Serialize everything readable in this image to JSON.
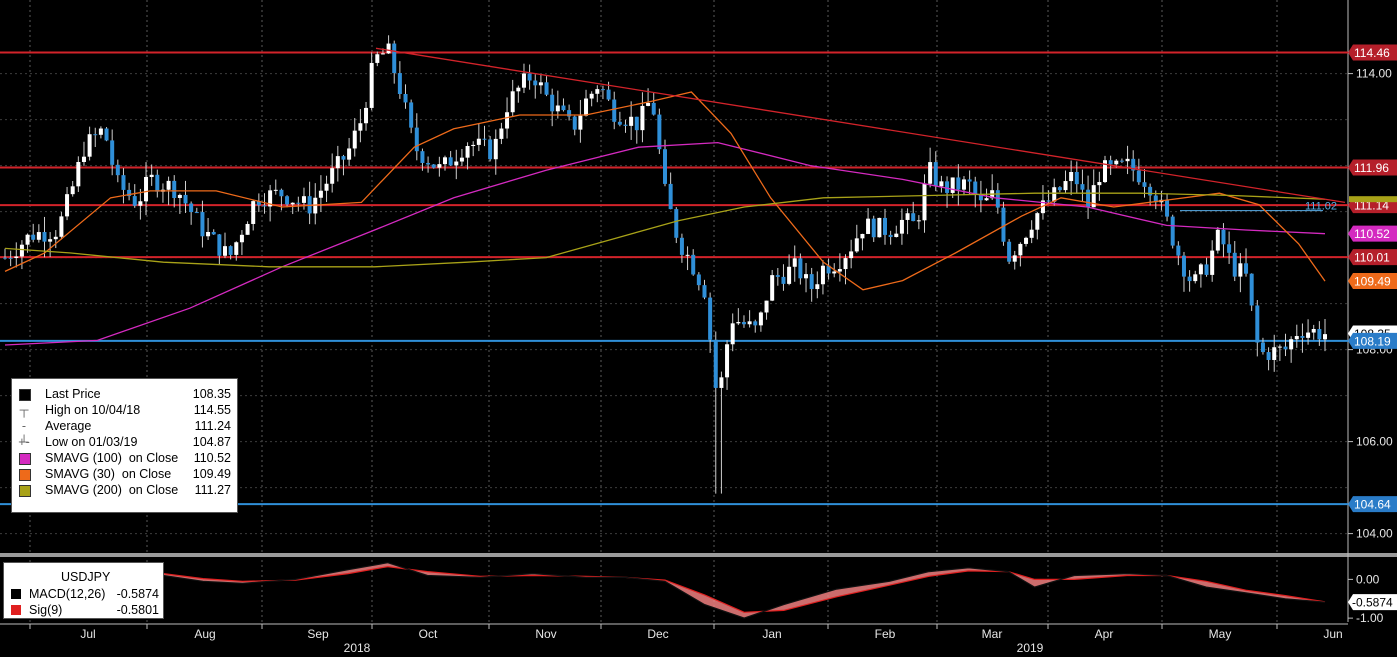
{
  "chart_data": [
    {
      "type": "candlestick",
      "instrument": "USDJPY",
      "ylim": [
        103.6,
        115.6
      ],
      "y_ticks": [
        104.0,
        106.0,
        108.0,
        114.0
      ],
      "x_months": [
        "Jul",
        "Aug",
        "Sep",
        "Oct",
        "Nov",
        "Dec",
        "Jan",
        "Feb",
        "Mar",
        "Apr",
        "May",
        "Jun"
      ],
      "x_years": [
        "2018",
        "2019"
      ],
      "horizontal_lines": [
        {
          "value": 114.46,
          "label": "114.46",
          "color": "#d2232a"
        },
        {
          "value": 111.96,
          "label": "111.96",
          "color": "#d2232a"
        },
        {
          "value": 111.14,
          "label": "111.14",
          "color": "#d2232a"
        },
        {
          "value": 110.01,
          "label": "110.01",
          "color": "#d2232a"
        },
        {
          "value": 108.19,
          "label": "108.19",
          "color": "#2f8fd8"
        },
        {
          "value": 104.64,
          "label": "104.64",
          "color": "#2f8fd8"
        }
      ],
      "axis_tags": [
        {
          "value": 110.52,
          "label": "110.52",
          "color": "#d42ac0"
        },
        {
          "value": 109.49,
          "label": "109.49",
          "color": "#ee6a1a"
        },
        {
          "value": 108.35,
          "label": "108.35",
          "color": "#ffffff"
        }
      ],
      "annotations": [
        {
          "label": "111.02",
          "value": 111.02,
          "color": "#5aaee8"
        }
      ],
      "trendline": {
        "from": [
          "2018-10-04",
          114.55
        ],
        "to": [
          "2019-06-03",
          111.2
        ],
        "color": "#d2232a"
      },
      "series": [
        {
          "name": "SMAVG (100) on Close",
          "color": "#d42ac0",
          "points": [
            [
              0,
              108.1
            ],
            [
              0.07,
              108.2
            ],
            [
              0.14,
              108.9
            ],
            [
              0.21,
              109.8
            ],
            [
              0.28,
              110.6
            ],
            [
              0.34,
              111.3
            ],
            [
              0.41,
              111.9
            ],
            [
              0.48,
              112.4
            ],
            [
              0.54,
              112.5
            ],
            [
              0.61,
              112.0
            ],
            [
              0.68,
              111.7
            ],
            [
              0.75,
              111.3
            ],
            [
              0.82,
              111.1
            ],
            [
              0.88,
              110.7
            ],
            [
              0.94,
              110.6
            ],
            [
              1.0,
              110.52
            ]
          ]
        },
        {
          "name": "SMAVG (30) on Close",
          "color": "#ee6a1a",
          "points": [
            [
              0,
              109.7
            ],
            [
              0.03,
              110.1
            ],
            [
              0.08,
              111.3
            ],
            [
              0.11,
              111.45
            ],
            [
              0.16,
              111.45
            ],
            [
              0.21,
              111.1
            ],
            [
              0.27,
              111.2
            ],
            [
              0.31,
              112.4
            ],
            [
              0.34,
              112.8
            ],
            [
              0.39,
              113.1
            ],
            [
              0.44,
              113.1
            ],
            [
              0.49,
              113.4
            ],
            [
              0.52,
              113.6
            ],
            [
              0.55,
              112.7
            ],
            [
              0.58,
              111.3
            ],
            [
              0.62,
              109.9
            ],
            [
              0.65,
              109.3
            ],
            [
              0.68,
              109.5
            ],
            [
              0.72,
              110.1
            ],
            [
              0.77,
              110.9
            ],
            [
              0.8,
              111.3
            ],
            [
              0.84,
              111.1
            ],
            [
              0.88,
              111.25
            ],
            [
              0.92,
              111.4
            ],
            [
              0.95,
              111.15
            ],
            [
              0.98,
              110.3
            ],
            [
              1.0,
              109.49
            ]
          ]
        },
        {
          "name": "SMAVG (200) on Close",
          "color": "#a8a218",
          "points": [
            [
              0,
              110.2
            ],
            [
              0.05,
              110.1
            ],
            [
              0.12,
              109.9
            ],
            [
              0.2,
              109.8
            ],
            [
              0.28,
              109.8
            ],
            [
              0.35,
              109.9
            ],
            [
              0.41,
              110.0
            ],
            [
              0.46,
              110.4
            ],
            [
              0.51,
              110.8
            ],
            [
              0.56,
              111.1
            ],
            [
              0.62,
              111.3
            ],
            [
              0.7,
              111.35
            ],
            [
              0.78,
              111.4
            ],
            [
              0.86,
              111.4
            ],
            [
              0.93,
              111.35
            ],
            [
              1.0,
              111.27
            ]
          ]
        },
        {
          "name": "Last Price",
          "color": "#2f8fd8",
          "points": [
            [
              0,
              110.0
            ],
            [
              0.02,
              110.5
            ],
            [
              0.04,
              110.6
            ],
            [
              0.05,
              111.4
            ],
            [
              0.06,
              112.4
            ],
            [
              0.075,
              112.8
            ],
            [
              0.085,
              111.6
            ],
            [
              0.1,
              111.2
            ],
            [
              0.11,
              111.7
            ],
            [
              0.13,
              111.5
            ],
            [
              0.15,
              110.6
            ],
            [
              0.17,
              110.0
            ],
            [
              0.19,
              111.3
            ],
            [
              0.21,
              111.4
            ],
            [
              0.23,
              111.1
            ],
            [
              0.25,
              111.9
            ],
            [
              0.26,
              112.3
            ],
            [
              0.27,
              113.0
            ],
            [
              0.28,
              114.3
            ],
            [
              0.29,
              114.5
            ],
            [
              0.3,
              113.6
            ],
            [
              0.31,
              112.4
            ],
            [
              0.33,
              111.9
            ],
            [
              0.35,
              112.5
            ],
            [
              0.37,
              112.3
            ],
            [
              0.38,
              113.3
            ],
            [
              0.39,
              113.7
            ],
            [
              0.4,
              114.0
            ],
            [
              0.41,
              113.5
            ],
            [
              0.43,
              112.8
            ],
            [
              0.44,
              113.4
            ],
            [
              0.45,
              113.8
            ],
            [
              0.46,
              113.2
            ],
            [
              0.48,
              112.9
            ],
            [
              0.49,
              113.5
            ],
            [
              0.5,
              111.4
            ],
            [
              0.51,
              110.4
            ],
            [
              0.52,
              109.9
            ],
            [
              0.53,
              109.3
            ],
            [
              0.54,
              106.8
            ],
            [
              0.55,
              108.7
            ],
            [
              0.57,
              108.4
            ],
            [
              0.58,
              109.5
            ],
            [
              0.6,
              109.8
            ],
            [
              0.61,
              109.3
            ],
            [
              0.62,
              109.8
            ],
            [
              0.63,
              109.9
            ],
            [
              0.64,
              110.2
            ],
            [
              0.65,
              110.7
            ],
            [
              0.67,
              110.6
            ],
            [
              0.68,
              110.8
            ],
            [
              0.69,
              110.7
            ],
            [
              0.7,
              111.9
            ],
            [
              0.71,
              111.5
            ],
            [
              0.73,
              111.6
            ],
            [
              0.74,
              111.1
            ],
            [
              0.75,
              111.4
            ],
            [
              0.76,
              110.0
            ],
            [
              0.77,
              110.4
            ],
            [
              0.78,
              110.9
            ],
            [
              0.8,
              111.5
            ],
            [
              0.81,
              111.8
            ],
            [
              0.82,
              111.1
            ],
            [
              0.83,
              111.9
            ],
            [
              0.84,
              111.9
            ],
            [
              0.85,
              112.0
            ],
            [
              0.86,
              111.8
            ],
            [
              0.87,
              111.5
            ],
            [
              0.88,
              110.8
            ],
            [
              0.89,
              110.0
            ],
            [
              0.9,
              109.4
            ],
            [
              0.91,
              109.8
            ],
            [
              0.92,
              110.5
            ],
            [
              0.93,
              109.8
            ],
            [
              0.94,
              109.6
            ],
            [
              0.95,
              107.9
            ],
            [
              0.97,
              108.0
            ],
            [
              0.98,
              108.45
            ],
            [
              1.0,
              108.35
            ]
          ]
        }
      ],
      "legend": [
        {
          "marker": "square",
          "color": "#000000",
          "label": "Last Price",
          "value": "108.35"
        },
        {
          "marker": "high",
          "label": "High on 10/04/18",
          "value": "114.55"
        },
        {
          "marker": "avg",
          "label": "Average",
          "value": "111.24"
        },
        {
          "marker": "low",
          "label": "Low on 01/03/19",
          "value": "104.87"
        },
        {
          "marker": "square",
          "color": "#d42ac0",
          "label": "SMAVG (100)  on Close",
          "value": "110.52"
        },
        {
          "marker": "square",
          "color": "#ee6a1a",
          "label": "SMAVG (30)  on Close",
          "value": "109.49"
        },
        {
          "marker": "square",
          "color": "#a8a218",
          "label": "SMAVG (200)  on Close",
          "value": "111.27"
        }
      ]
    },
    {
      "type": "line",
      "title": "USDJPY",
      "ylim": [
        -1.1,
        0.5
      ],
      "y_ticks": [
        {
          "value": 0.0,
          "label": "0.00"
        },
        {
          "value": -1.0,
          "label": "-1.00"
        }
      ],
      "axis_tags": [
        {
          "value": -0.5874,
          "label": "-0.5874",
          "color": "#ffffff"
        }
      ],
      "series": [
        {
          "name": "MACD(12,26)",
          "color": "#000000",
          "value": "-0.5874",
          "points": [
            [
              0,
              -0.05
            ],
            [
              0.05,
              0.15
            ],
            [
              0.09,
              0.25
            ],
            [
              0.12,
              0.1
            ],
            [
              0.15,
              -0.05
            ],
            [
              0.18,
              -0.1
            ],
            [
              0.22,
              0.0
            ],
            [
              0.26,
              0.25
            ],
            [
              0.29,
              0.43
            ],
            [
              0.32,
              0.1
            ],
            [
              0.36,
              0.05
            ],
            [
              0.4,
              0.15
            ],
            [
              0.44,
              0.05
            ],
            [
              0.47,
              0.05
            ],
            [
              0.5,
              -0.05
            ],
            [
              0.53,
              -0.65
            ],
            [
              0.56,
              -1.0
            ],
            [
              0.59,
              -0.65
            ],
            [
              0.63,
              -0.25
            ],
            [
              0.67,
              -0.05
            ],
            [
              0.7,
              0.2
            ],
            [
              0.73,
              0.3
            ],
            [
              0.76,
              0.2
            ],
            [
              0.78,
              -0.2
            ],
            [
              0.81,
              0.1
            ],
            [
              0.85,
              0.15
            ],
            [
              0.88,
              0.1
            ],
            [
              0.91,
              -0.2
            ],
            [
              0.94,
              -0.35
            ],
            [
              0.97,
              -0.5
            ],
            [
              1.0,
              -0.5874
            ]
          ]
        },
        {
          "name": "Sig(9)",
          "color": "#e02020",
          "value": "-0.5801",
          "points": [
            [
              0,
              0.0
            ],
            [
              0.05,
              0.08
            ],
            [
              0.09,
              0.18
            ],
            [
              0.12,
              0.15
            ],
            [
              0.15,
              0.02
            ],
            [
              0.18,
              -0.05
            ],
            [
              0.22,
              -0.02
            ],
            [
              0.26,
              0.15
            ],
            [
              0.29,
              0.33
            ],
            [
              0.32,
              0.2
            ],
            [
              0.36,
              0.08
            ],
            [
              0.4,
              0.1
            ],
            [
              0.44,
              0.08
            ],
            [
              0.47,
              0.05
            ],
            [
              0.5,
              -0.02
            ],
            [
              0.53,
              -0.4
            ],
            [
              0.56,
              -0.85
            ],
            [
              0.59,
              -0.8
            ],
            [
              0.63,
              -0.45
            ],
            [
              0.67,
              -0.15
            ],
            [
              0.7,
              0.08
            ],
            [
              0.73,
              0.22
            ],
            [
              0.76,
              0.2
            ],
            [
              0.78,
              0.0
            ],
            [
              0.81,
              0.0
            ],
            [
              0.85,
              0.1
            ],
            [
              0.88,
              0.1
            ],
            [
              0.91,
              -0.05
            ],
            [
              0.94,
              -0.28
            ],
            [
              0.97,
              -0.42
            ],
            [
              1.0,
              -0.5801
            ]
          ]
        }
      ]
    }
  ]
}
